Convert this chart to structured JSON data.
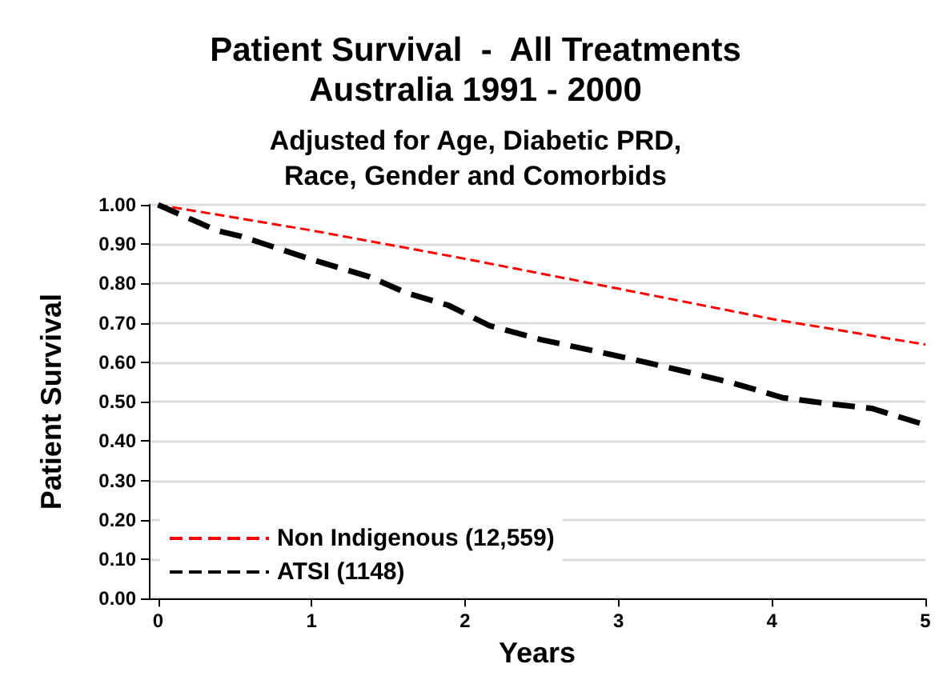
{
  "chart_data": {
    "type": "line",
    "title": "Patient Survival  -  All Treatments\nAustralia 1991 - 2000",
    "subtitle": "Adjusted for Age, Diabetic PRD,\nRace, Gender and Comorbids",
    "xlabel": "Years",
    "ylabel": "Patient Survival",
    "xlim": [
      -0.06,
      5
    ],
    "xticks": [
      0,
      1,
      2,
      3,
      4,
      5
    ],
    "ylim": [
      0,
      1
    ],
    "yticks": [
      {
        "value": 0,
        "label": "0.00"
      },
      {
        "value": 0.1,
        "label": "0.10"
      },
      {
        "value": 0.2,
        "label": "0.20"
      },
      {
        "value": 0.3,
        "label": "0.30"
      },
      {
        "value": 0.4,
        "label": "0.40"
      },
      {
        "value": 0.5,
        "label": "0.50"
      },
      {
        "value": 0.6,
        "label": "0.60"
      },
      {
        "value": 0.7,
        "label": "0.70"
      },
      {
        "value": 0.8,
        "label": "0.80"
      },
      {
        "value": 0.9,
        "label": "0.90"
      },
      {
        "value": 1,
        "label": "1.00"
      }
    ],
    "grid": "y",
    "legend": "bottom left",
    "marker": "none",
    "line_style": "dashed",
    "series": [
      {
        "name": "Non Indigenous (12,559)",
        "color": "#ff0000",
        "x": [
          0,
          1,
          2,
          3,
          4,
          5
        ],
        "values": [
          1.0,
          0.935,
          0.863,
          0.787,
          0.71,
          0.645
        ]
      },
      {
        "name": "ATSI (1148)",
        "color": "#000000",
        "x": [
          0,
          0.38,
          0.54,
          1.0,
          1.38,
          1.62,
          1.89,
          2.16,
          2.49,
          2.9,
          3.1,
          3.4,
          3.74,
          4.07,
          4.41,
          4.65,
          5
        ],
        "values": [
          1.0,
          0.935,
          0.92,
          0.861,
          0.817,
          0.776,
          0.745,
          0.693,
          0.658,
          0.624,
          0.607,
          0.58,
          0.548,
          0.51,
          0.493,
          0.483,
          0.441
        ]
      }
    ]
  }
}
